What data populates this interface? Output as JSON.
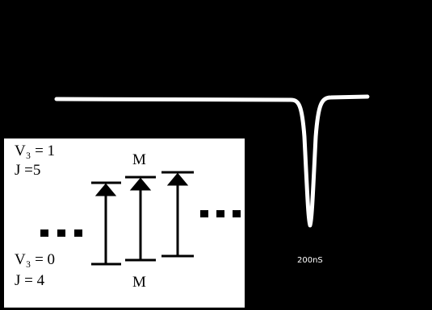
{
  "upper_level": {
    "vibration": "V₃ = 1",
    "rotation": "J =5",
    "sublevel": "M"
  },
  "lower_level": {
    "vibration": "V₃ = 0",
    "rotation": "J = 4",
    "sublevel": "M"
  },
  "trace": {
    "time_scale": "200nS"
  }
}
